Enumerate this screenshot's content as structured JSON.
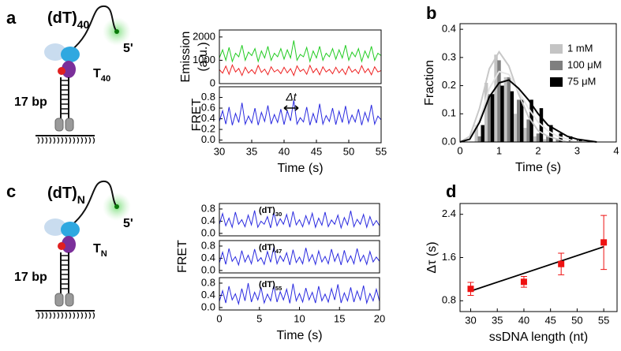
{
  "panel_labels": [
    "a",
    "b",
    "c",
    "d"
  ],
  "diagrams": [
    {
      "title": {
        "text": "(dT)",
        "sub": "40"
      },
      "end": "5'",
      "tail": {
        "text": "T",
        "sub": "40"
      },
      "stem": "17 bp"
    },
    {
      "title": {
        "text": "(dT)",
        "sub": "N"
      },
      "end": "5'",
      "tail": {
        "text": "T",
        "sub": "N"
      },
      "stem": "17 bp"
    }
  ],
  "chart_data": [
    {
      "type": "line",
      "ylabel": [
        "Emission",
        "(a.u.)"
      ],
      "x": [
        30,
        30.5,
        31,
        31.5,
        32,
        32.5,
        33,
        33.5,
        34,
        34.5,
        35,
        35.5,
        36,
        36.5,
        37,
        37.5,
        38,
        38.5,
        39,
        39.5,
        40,
        40.5,
        41,
        41.5,
        42,
        42.5,
        43,
        43.5,
        44,
        44.5,
        45,
        45.5,
        46,
        46.5,
        47,
        47.5,
        48,
        48.5,
        49,
        49.5,
        50,
        50.5,
        51,
        51.5,
        52,
        52.5,
        53,
        53.5,
        54,
        54.5,
        55
      ],
      "series": [
        {
          "color": "#22cc22",
          "values": [
            1100,
            1450,
            1000,
            1550,
            950,
            1300,
            1150,
            1650,
            1000,
            1350,
            1200,
            1500,
            950,
            1400,
            1100,
            1600,
            1000,
            1300,
            1150,
            1500,
            1050,
            1450,
            1100,
            1850,
            1000,
            1250,
            1150,
            1550,
            950,
            1400,
            1100,
            1600,
            1000,
            1300,
            1150,
            1500,
            1050,
            1450,
            1100,
            1650,
            1000,
            1350,
            1150,
            1500,
            950,
            1400,
            1100,
            1600,
            1000,
            1300,
            1200
          ]
        },
        {
          "color": "#ee2222",
          "values": [
            600,
            450,
            750,
            400,
            800,
            500,
            650,
            350,
            700,
            450,
            600,
            420,
            780,
            480,
            620,
            380,
            720,
            500,
            600,
            430,
            700,
            460,
            640,
            350,
            760,
            520,
            620,
            400,
            780,
            470,
            650,
            380,
            720,
            500,
            610,
            420,
            700,
            460,
            630,
            390,
            740,
            490,
            610,
            430,
            770,
            470,
            640,
            380,
            720,
            500,
            560
          ]
        }
      ],
      "xlim": [
        30,
        55
      ],
      "ylim": [
        0,
        2300
      ],
      "yticks": [
        0,
        1000,
        2000
      ]
    },
    {
      "type": "line",
      "ylabel": "FRET",
      "xlabel": "Time (s)",
      "annotation": "Δt",
      "x": [
        30,
        30.5,
        31,
        31.5,
        32,
        32.5,
        33,
        33.5,
        34,
        34.5,
        35,
        35.5,
        36,
        36.5,
        37,
        37.5,
        38,
        38.5,
        39,
        39.5,
        40,
        40.5,
        41,
        41.5,
        42,
        42.5,
        43,
        43.5,
        44,
        44.5,
        45,
        45.5,
        46,
        46.5,
        47,
        47.5,
        48,
        48.5,
        49,
        49.5,
        50,
        50.5,
        51,
        51.5,
        52,
        52.5,
        53,
        53.5,
        54,
        54.5,
        55
      ],
      "series": [
        {
          "color": "#2a2ae0",
          "values": [
            0.35,
            0.55,
            0.3,
            0.62,
            0.28,
            0.5,
            0.33,
            0.7,
            0.3,
            0.45,
            0.32,
            0.6,
            0.28,
            0.52,
            0.35,
            0.65,
            0.3,
            0.48,
            0.33,
            0.58,
            0.29,
            0.55,
            0.36,
            0.75,
            0.3,
            0.42,
            0.34,
            0.62,
            0.28,
            0.5,
            0.32,
            0.68,
            0.3,
            0.46,
            0.35,
            0.6,
            0.29,
            0.54,
            0.33,
            0.64,
            0.31,
            0.47,
            0.34,
            0.58,
            0.28,
            0.52,
            0.35,
            0.66,
            0.3,
            0.45,
            0.38
          ]
        }
      ],
      "xlim": [
        30,
        55
      ],
      "xticks": [
        30,
        35,
        40,
        45,
        50,
        55
      ],
      "ylim": [
        -0.05,
        1.0
      ],
      "yticks": [
        {
          "value": 0,
          "label": "0.0"
        },
        0.2,
        0.4,
        0.6,
        0.8
      ]
    },
    {
      "type": "bar",
      "ylabel": "Fraction",
      "xlabel": "Time (s)",
      "legend": "upper right",
      "x": [
        0.5,
        0.75,
        1.0,
        1.25,
        1.5,
        1.75,
        2.0,
        2.25,
        2.5,
        2.75,
        3.0
      ],
      "series": [
        {
          "name": "1 mM",
          "color": "#c4c4c4",
          "values": [
            0.06,
            0.21,
            0.31,
            0.23,
            0.1,
            0.05,
            0.02,
            0.01,
            0,
            0,
            0
          ]
        },
        {
          "name": "100 μM",
          "color": "#7f7f7f",
          "values": [
            0.02,
            0.17,
            0.29,
            0.23,
            0.15,
            0.08,
            0.03,
            0.02,
            0.01,
            0,
            0
          ]
        },
        {
          "name": "75 μM",
          "color": "#000000",
          "values": [
            0.06,
            0.17,
            0.2,
            0.18,
            0.15,
            0.15,
            0.12,
            0.06,
            0.03,
            0.02,
            0.01
          ]
        }
      ],
      "fits": [
        {
          "color": "#c8c8c8",
          "x": [
            0,
            0.25,
            0.5,
            0.75,
            1,
            1.25,
            1.5,
            1.75,
            2,
            2.25,
            2.5,
            2.75,
            3,
            3.25,
            3.5
          ],
          "values": [
            0,
            0.02,
            0.12,
            0.26,
            0.32,
            0.27,
            0.17,
            0.09,
            0.04,
            0.02,
            0.01,
            0,
            0,
            0,
            0
          ]
        },
        {
          "color": "#e6e6e6",
          "x": [
            0,
            0.25,
            0.5,
            0.75,
            1,
            1.25,
            1.5,
            1.75,
            2,
            2.25,
            2.5,
            2.75,
            3,
            3.25,
            3.5
          ],
          "values": [
            0,
            0.01,
            0.08,
            0.19,
            0.25,
            0.24,
            0.18,
            0.12,
            0.07,
            0.04,
            0.02,
            0.01,
            0,
            0,
            0
          ]
        },
        {
          "color": "#000000",
          "x": [
            0,
            0.25,
            0.5,
            0.75,
            1,
            1.25,
            1.5,
            1.75,
            2,
            2.25,
            2.5,
            2.75,
            3,
            3.25,
            3.5
          ],
          "values": [
            0,
            0.01,
            0.07,
            0.16,
            0.21,
            0.22,
            0.19,
            0.15,
            0.1,
            0.06,
            0.04,
            0.02,
            0.01,
            0.005,
            0
          ]
        }
      ],
      "xlim": [
        0,
        4
      ],
      "xticks": [
        0,
        1,
        2,
        3,
        4
      ],
      "ylim": [
        0,
        0.42
      ],
      "yticks": [
        {
          "value": 0,
          "label": "0.0"
        },
        0.1,
        0.2,
        0.3,
        0.4
      ]
    },
    {
      "type": "line",
      "annotation": {
        "text": "(dT)",
        "sub": "30"
      },
      "x": [
        0,
        0.4,
        0.8,
        1.2,
        1.6,
        2,
        2.4,
        2.8,
        3.2,
        3.6,
        4,
        4.4,
        4.8,
        5.2,
        5.6,
        6,
        6.4,
        6.8,
        7.2,
        7.6,
        8,
        8.4,
        8.8,
        9.2,
        9.6,
        10,
        10.4,
        10.8,
        11.2,
        11.6,
        12,
        12.4,
        12.8,
        13.2,
        13.6,
        14,
        14.4,
        14.8,
        15.2,
        15.6,
        16,
        16.4,
        16.8,
        17.2,
        17.6,
        18,
        18.4,
        18.8,
        19.2,
        19.6,
        20
      ],
      "series": [
        {
          "color": "#2a2ae0",
          "values": [
            0.3,
            0.65,
            0.25,
            0.5,
            0.2,
            0.7,
            0.3,
            0.45,
            0.22,
            0.6,
            0.28,
            0.75,
            0.2,
            0.4,
            0.3,
            0.55,
            0.18,
            0.68,
            0.25,
            0.48,
            0.3,
            0.62,
            0.2,
            0.72,
            0.28,
            0.45,
            0.22,
            0.58,
            0.3,
            0.66,
            0.2,
            0.5,
            0.27,
            0.7,
            0.22,
            0.44,
            0.3,
            0.6,
            0.18,
            0.52,
            0.28,
            0.74,
            0.22,
            0.46,
            0.3,
            0.62,
            0.2,
            0.55,
            0.26,
            0.42,
            0.25
          ]
        }
      ],
      "xlim": [
        0,
        20
      ],
      "ylim": [
        -0.08,
        0.98
      ],
      "yticks": [
        {
          "value": 0,
          "label": "0.0"
        },
        0.4,
        0.8
      ]
    },
    {
      "type": "line",
      "ylabel": "FRET",
      "annotation": {
        "text": "(dT)",
        "sub": "47"
      },
      "x": [
        0,
        0.4,
        0.8,
        1.2,
        1.6,
        2,
        2.4,
        2.8,
        3.2,
        3.6,
        4,
        4.4,
        4.8,
        5.2,
        5.6,
        6,
        6.4,
        6.8,
        7.2,
        7.6,
        8,
        8.4,
        8.8,
        9.2,
        9.6,
        10,
        10.4,
        10.8,
        11.2,
        11.6,
        12,
        12.4,
        12.8,
        13.2,
        13.6,
        14,
        14.4,
        14.8,
        15.2,
        15.6,
        16,
        16.4,
        16.8,
        17.2,
        17.6,
        18,
        18.4,
        18.8,
        19.2,
        19.6,
        20
      ],
      "series": [
        {
          "color": "#2a2ae0",
          "values": [
            0.25,
            0.6,
            0.2,
            0.72,
            0.3,
            0.45,
            0.18,
            0.65,
            0.28,
            0.5,
            0.22,
            0.7,
            0.3,
            0.42,
            0.2,
            0.62,
            0.27,
            0.76,
            0.22,
            0.48,
            0.3,
            0.58,
            0.18,
            0.68,
            0.26,
            0.44,
            0.22,
            0.74,
            0.3,
            0.52,
            0.2,
            0.64,
            0.28,
            0.46,
            0.22,
            0.7,
            0.3,
            0.55,
            0.18,
            0.66,
            0.27,
            0.48,
            0.22,
            0.72,
            0.3,
            0.5,
            0.2,
            0.62,
            0.28,
            0.44,
            0.3
          ]
        }
      ],
      "xlim": [
        0,
        20
      ],
      "ylim": [
        -0.08,
        0.98
      ],
      "yticks": [
        {
          "value": 0,
          "label": "0.0"
        },
        0.4,
        0.8
      ]
    },
    {
      "type": "line",
      "xlabel": "Time (s)",
      "annotation": {
        "text": "(dT)",
        "sub": "55"
      },
      "x": [
        0,
        0.4,
        0.8,
        1.2,
        1.6,
        2,
        2.4,
        2.8,
        3.2,
        3.6,
        4,
        4.4,
        4.8,
        5.2,
        5.6,
        6,
        6.4,
        6.8,
        7.2,
        7.6,
        8,
        8.4,
        8.8,
        9.2,
        9.6,
        10,
        10.4,
        10.8,
        11.2,
        11.6,
        12,
        12.4,
        12.8,
        13.2,
        13.6,
        14,
        14.4,
        14.8,
        15.2,
        15.6,
        16,
        16.4,
        16.8,
        17.2,
        17.6,
        18,
        18.4,
        18.8,
        19.2,
        19.6,
        20
      ],
      "series": [
        {
          "color": "#2a2ae0",
          "values": [
            0.2,
            0.55,
            0.15,
            0.7,
            0.25,
            0.45,
            0.12,
            0.62,
            0.22,
            0.8,
            0.18,
            0.5,
            0.25,
            0.66,
            0.15,
            0.44,
            0.22,
            0.72,
            0.18,
            0.52,
            0.25,
            0.6,
            0.14,
            0.78,
            0.22,
            0.46,
            0.18,
            0.64,
            0.25,
            0.5,
            0.15,
            0.7,
            0.22,
            0.44,
            0.18,
            0.62,
            0.25,
            0.76,
            0.15,
            0.48,
            0.22,
            0.66,
            0.18,
            0.54,
            0.25,
            0.72,
            0.15,
            0.46,
            0.22,
            0.6,
            0.2
          ]
        }
      ],
      "xlim": [
        0,
        20
      ],
      "xticks": [
        0,
        5,
        10,
        15,
        20
      ],
      "ylim": [
        -0.08,
        0.98
      ],
      "yticks": [
        {
          "value": 0,
          "label": "0.0"
        },
        0.4,
        0.8
      ]
    },
    {
      "type": "scatter",
      "ylabel": "Δτ (s)",
      "xlabel": "ssDNA length (nt)",
      "color": "#ee1111",
      "x": [
        30,
        40,
        47,
        55
      ],
      "values": [
        1.02,
        1.15,
        1.48,
        1.88
      ],
      "errors": [
        0.12,
        0.1,
        0.2,
        0.5
      ],
      "fit": {
        "color": "#000000",
        "x": [
          30,
          55
        ],
        "values": [
          0.98,
          1.8
        ]
      },
      "xlim": [
        28,
        57.5
      ],
      "xticks": [
        30,
        35,
        40,
        45,
        50,
        55
      ],
      "ylim": [
        0.6,
        2.6
      ],
      "yticks": [
        0.8,
        1.6,
        2.4
      ]
    }
  ]
}
